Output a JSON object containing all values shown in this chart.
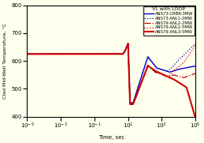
{
  "title": "VL with LOOP",
  "xlabel": "Time, sec",
  "ylabel": "Clad Mid-Wall Temperature, °C",
  "ylim": [
    400,
    800
  ],
  "xlim_log": [
    1e-05,
    100000.0
  ],
  "yticks": [
    400,
    500,
    600,
    700,
    800
  ],
  "legend": [
    {
      "label": "ANS73-CRBR-3MW",
      "color": "#0000cc",
      "ls": "-",
      "lw": 1.0
    },
    {
      "label": "ANS73-ANL1-2MW",
      "color": "#0000cc",
      "ls": ":",
      "lw": 0.9
    },
    {
      "label": "ANS79-ANL2-2MW",
      "color": "#cc0000",
      "ls": "-.",
      "lw": 0.9
    },
    {
      "label": "ANS79-ANL2-5MW",
      "color": "#cc0000",
      "ls": ":",
      "lw": 0.9
    },
    {
      "label": "ANS79-ANL3-5MW",
      "color": "#cc0000",
      "ls": "-",
      "lw": 1.5
    }
  ],
  "background": "#ffffee"
}
